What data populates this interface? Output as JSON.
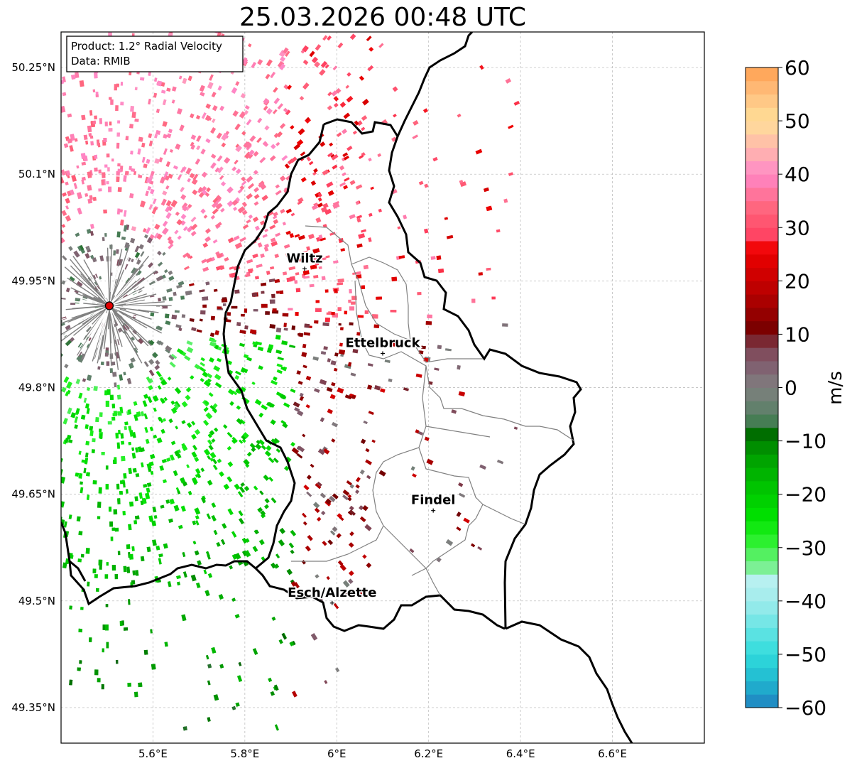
{
  "title": "25.03.2026 00:48 UTC",
  "info": {
    "product": "Product: 1.2° Radial Velocity",
    "data": "Data: RMIB"
  },
  "axes": {
    "lon_ticks": [
      "5.6°E",
      "5.8°E",
      "6°E",
      "6.2°E",
      "6.4°E",
      "6.6°E"
    ],
    "lon_values": [
      5.6,
      5.8,
      6.0,
      6.2,
      6.4,
      6.6
    ],
    "lat_ticks": [
      "50.25°N",
      "50.1°N",
      "49.95°N",
      "49.8°N",
      "49.65°N",
      "49.5°N",
      "49.35°N"
    ],
    "lat_values": [
      50.25,
      50.1,
      49.95,
      49.8,
      49.65,
      49.5,
      49.35
    ],
    "lon_range": [
      5.4,
      6.8
    ],
    "lat_range": [
      49.3,
      50.3
    ]
  },
  "cities": [
    {
      "name": "Wiltz",
      "lon": 5.93,
      "lat": 49.967
    },
    {
      "name": "Ettelbruck",
      "lon": 6.1,
      "lat": 49.848
    },
    {
      "name": "Findel",
      "lon": 6.21,
      "lat": 49.627
    },
    {
      "name": "Esch/Alzette",
      "lon": 5.99,
      "lat": 49.497
    }
  ],
  "radar": {
    "lon": 5.505,
    "lat": 49.915
  },
  "colorbar": {
    "label": "m/s",
    "tick_labels": [
      "60",
      "50",
      "40",
      "30",
      "20",
      "10",
      "0",
      "−10",
      "−20",
      "−30",
      "−40",
      "−50",
      "−60"
    ],
    "tick_values": [
      60,
      50,
      40,
      30,
      20,
      10,
      0,
      -10,
      -20,
      -30,
      -40,
      -50,
      -60
    ],
    "min": -60,
    "max": 60
  },
  "colors": {
    "border": "#000000",
    "canton_lines": "#808080",
    "radar_marker": "#e00000"
  }
}
